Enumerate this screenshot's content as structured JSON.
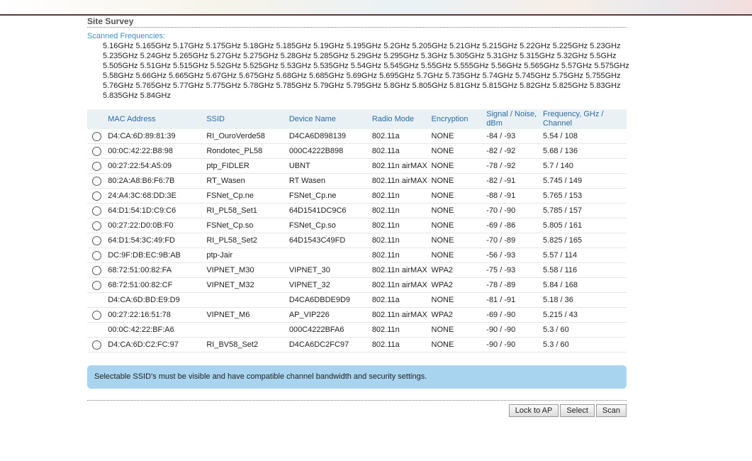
{
  "header": {
    "title": "Site Survey"
  },
  "frequencies": {
    "label": "Scanned Frequencies:",
    "lines": [
      "5.16GHz 5.165GHz 5.17GHz 5.175GHz 5.18GHz 5.185GHz 5.19GHz 5.195GHz 5.2GHz 5.205GHz 5.21GHz 5.215GHz 5.22GHz 5.225GHz 5.23GHz",
      "5.235GHz 5.24GHz 5.265GHz 5.27GHz 5.275GHz 5.28GHz 5.285GHz 5.29GHz 5.295GHz 5.3GHz 5.305GHz 5.31GHz 5.315GHz 5.32GHz 5.5GHz",
      "5.505GHz 5.51GHz 5.515GHz 5.52GHz 5.525GHz 5.53GHz 5.535GHz 5.54GHz 5.545GHz 5.55GHz 5.555GHz 5.56GHz 5.565GHz 5.57GHz 5.575GHz",
      "5.58GHz 5.66GHz 5.665GHz 5.67GHz 5.675GHz 5.68GHz 5.685GHz 5.69GHz 5.695GHz 5.7GHz 5.735GHz 5.74GHz 5.745GHz 5.75GHz 5.755GHz",
      "5.76GHz 5.765GHz 5.77GHz 5.775GHz 5.78GHz 5.785GHz 5.79GHz 5.795GHz 5.8GHz 5.805GHz 5.81GHz 5.815GHz 5.82GHz 5.825GHz 5.83GHz",
      "5.835GHz 5.84GHz"
    ]
  },
  "table": {
    "headers": [
      "MAC Address",
      "SSID",
      "Device Name",
      "Radio Mode",
      "Encryption",
      "Signal / Noise, dBm",
      "Frequency, GHz / Channel"
    ],
    "rows": [
      {
        "radio": true,
        "cells": [
          "D4:CA:6D:89:81:39",
          "RI_OuroVerde58",
          "D4CA6D898139",
          "802.11a",
          "NONE",
          "-84 / -93",
          "5.54 / 108"
        ]
      },
      {
        "radio": true,
        "cells": [
          "00:0C:42:22:B8:98",
          "Rondotec_PL58",
          "000C4222B898",
          "802.11a",
          "NONE",
          "-82 / -92",
          "5.68 / 136"
        ]
      },
      {
        "radio": true,
        "cells": [
          "00:27:22:54:A5:09",
          "ptp_FIDLER",
          "UBNT",
          "802.11n airMAX",
          "NONE",
          "-78 / -92",
          "5.7 / 140"
        ]
      },
      {
        "radio": true,
        "cells": [
          "80:2A:A8:B6:F6:7B",
          "RT_Wasen",
          "RT Wasen",
          "802.11n airMAX",
          "NONE",
          "-82 / -91",
          "5.745 / 149"
        ]
      },
      {
        "radio": true,
        "cells": [
          "24:A4:3C:68:DD:3E",
          "FSNet_Cp.ne",
          "FSNet_Cp.ne",
          "802.11n",
          "NONE",
          "-88 / -91",
          "5.765 / 153"
        ]
      },
      {
        "radio": true,
        "cells": [
          "64:D1:54:1D:C9:C6",
          "RI_PL58_Set1",
          "64D1541DC9C6",
          "802.11n",
          "NONE",
          "-70 / -90",
          "5.785 / 157"
        ]
      },
      {
        "radio": true,
        "cells": [
          "00:27:22:D0:0B:F0",
          "FSNet_Cp.so",
          "FSNet_Cp.so",
          "802.11n",
          "NONE",
          "-69 / -86",
          "5.805 / 161"
        ]
      },
      {
        "radio": true,
        "cells": [
          "64:D1:54:3C:49:FD",
          "RI_PL58_Set2",
          "64D1543C49FD",
          "802.11n",
          "NONE",
          "-70 / -89",
          "5.825 / 165"
        ]
      },
      {
        "radio": true,
        "cells": [
          "DC:9F:DB:EC:9B:AB",
          "ptp-Jair",
          null,
          "802.11n",
          "NONE",
          "-56 / -93",
          "5.57 / 114"
        ]
      },
      {
        "radio": true,
        "cells": [
          "68:72:51:00:82:FA",
          "VIPNET_M30",
          "VIPNET_30",
          "802.11n airMAX",
          "WPA2",
          "-75 / -93",
          "5.58 / 116"
        ]
      },
      {
        "radio": true,
        "cells": [
          "68:72:51:00:82:CF",
          "VIPNET_M32",
          "VIPNET_32",
          "802.11n airMAX",
          "WPA2",
          "-78 / -89",
          "5.84 / 168"
        ]
      },
      {
        "radio": false,
        "cells": [
          "D4:CA:6D:BD:E9:D9",
          null,
          "D4CA6DBDE9D9",
          "802.11a",
          "NONE",
          "-81 / -91",
          "5.18 / 36"
        ]
      },
      {
        "radio": true,
        "cells": [
          "00:27:22:16:51:78",
          "VIPNET_M6",
          "AP_VIP226",
          "802.11n airMAX",
          "WPA2",
          "-69 / -90",
          "5.215 / 43"
        ]
      },
      {
        "radio": false,
        "cells": [
          "00:0C:42:22:BF:A6",
          null,
          "000C4222BFA6",
          "802.11n",
          "NONE",
          "-90 / -90",
          "5.3 / 60"
        ]
      },
      {
        "radio": true,
        "cells": [
          "D4:CA:6D:C2:FC:97",
          "RI_BV58_Set2",
          "D4CA6DC2FC97",
          "802.11a",
          "NONE",
          "-90 / -90",
          "5.3 / 60"
        ]
      }
    ]
  },
  "notice": "Selectable SSID's must be visible and have compatible channel bandwidth and security settings.",
  "buttons": [
    "Lock to AP",
    "Select",
    "Scan"
  ]
}
